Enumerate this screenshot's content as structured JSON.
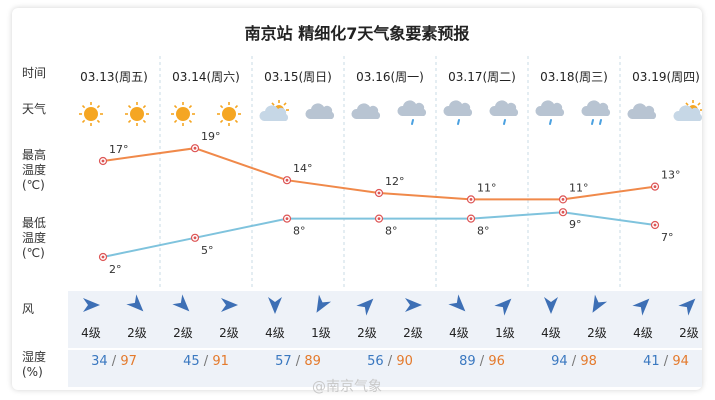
{
  "title": "南京站 精细化7天气象要素预报",
  "row_labels": {
    "time": "时间",
    "weather": "天气",
    "high": "最高\n温度\n(℃)",
    "low": "最低\n温度\n(℃)",
    "wind": "风",
    "humidity": "湿度\n(%)"
  },
  "days": [
    {
      "date": "03.13(周五)",
      "weather": [
        "sunny",
        "sunny"
      ],
      "high": 17,
      "low": 2,
      "wind_dir": [
        90,
        135
      ],
      "wind_level": [
        "4级",
        "2级"
      ],
      "humidity": [
        34,
        97
      ]
    },
    {
      "date": "03.14(周六)",
      "weather": [
        "sunny",
        "sunny"
      ],
      "high": 19,
      "low": 5,
      "wind_dir": [
        135,
        90
      ],
      "wind_level": [
        "2级",
        "2级"
      ],
      "humidity": [
        45,
        91
      ]
    },
    {
      "date": "03.15(周日)",
      "weather": [
        "partly-cloudy",
        "cloudy"
      ],
      "high": 14,
      "low": 8,
      "wind_dir": [
        180,
        210
      ],
      "wind_level": [
        "4级",
        "1级"
      ],
      "humidity": [
        57,
        89
      ]
    },
    {
      "date": "03.16(周一)",
      "weather": [
        "cloudy",
        "light-rain"
      ],
      "high": 12,
      "low": 8,
      "wind_dir": [
        45,
        90
      ],
      "wind_level": [
        "2级",
        "2级"
      ],
      "humidity": [
        56,
        90
      ]
    },
    {
      "date": "03.17(周二)",
      "weather": [
        "light-rain",
        "light-rain"
      ],
      "high": 11,
      "low": 8,
      "wind_dir": [
        135,
        45
      ],
      "wind_level": [
        "4级",
        "1级"
      ],
      "humidity": [
        89,
        96
      ]
    },
    {
      "date": "03.18(周三)",
      "weather": [
        "light-rain",
        "moderate-rain"
      ],
      "high": 11,
      "low": 9,
      "wind_dir": [
        180,
        210
      ],
      "wind_level": [
        "4级",
        "2级"
      ],
      "humidity": [
        94,
        98
      ]
    },
    {
      "date": "03.19(周四)",
      "weather": [
        "cloudy",
        "partly-cloudy"
      ],
      "high": 13,
      "low": 7,
      "wind_dir": [
        45,
        45
      ],
      "wind_level": [
        "4级",
        "2级"
      ],
      "humidity": [
        41,
        94
      ]
    }
  ],
  "chart_data": [
    {
      "type": "line",
      "categories": [
        "03.13(周五)",
        "03.14(周六)",
        "03.15(周日)",
        "03.16(周一)",
        "03.17(周二)",
        "03.18(周三)",
        "03.19(周四)"
      ],
      "series": [
        {
          "values": [
            17,
            19,
            14,
            12,
            11,
            11,
            13
          ]
        }
      ],
      "unit": "°",
      "color": "#f0894a"
    },
    {
      "type": "line",
      "categories": [
        "03.13(周五)",
        "03.14(周六)",
        "03.15(周日)",
        "03.16(周一)",
        "03.17(周二)",
        "03.18(周三)",
        "03.19(周四)"
      ],
      "series": [
        {
          "values": [
            2,
            5,
            8,
            8,
            8,
            9,
            7
          ]
        }
      ],
      "unit": "°",
      "color": "#7fc3dd"
    }
  ],
  "colors": {
    "high_line": "#f0894a",
    "low_line": "#7fc3dd",
    "humidity_low": "#3a78c0",
    "humidity_high": "#e47a2c",
    "wind_arrow": "#3d6fb5",
    "sun": "#f5a623",
    "cloud": "#b8c4d2",
    "rain": "#4aa0e0"
  },
  "humidity_separator": "/",
  "watermark": "@南京气象"
}
